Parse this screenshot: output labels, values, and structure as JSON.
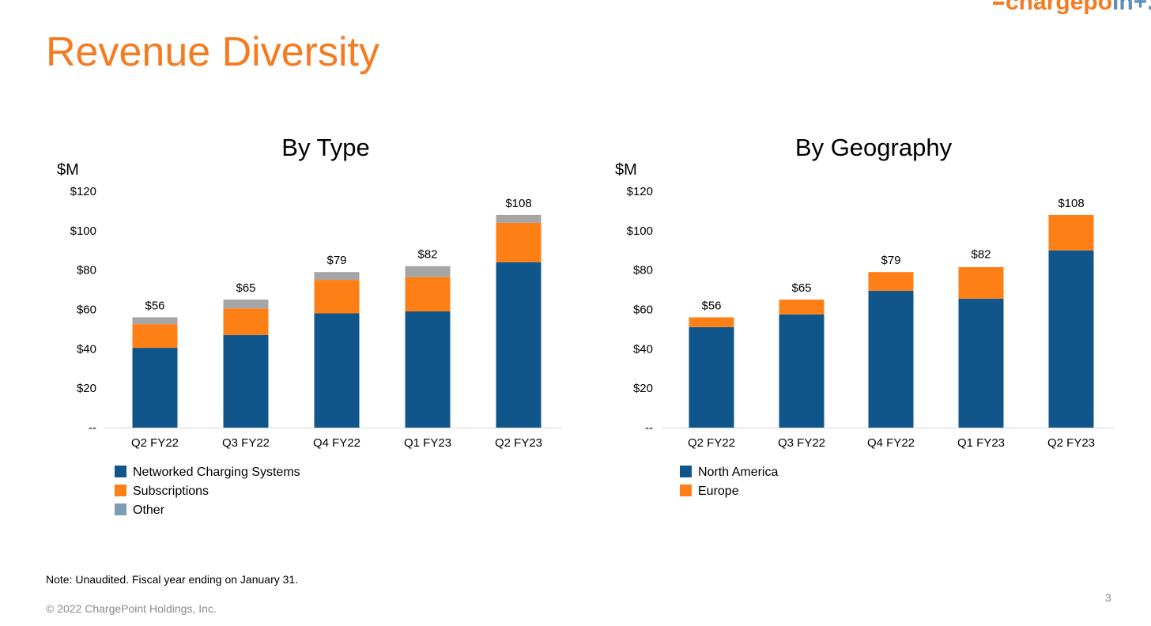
{
  "page": {
    "title": "Revenue Diversity",
    "logo_text_a": "chargepo",
    "logo_text_b": "in+.",
    "note": "Note: Unaudited. Fiscal year ending on January 31.",
    "footer": "© 2022 ChargePoint Holdings, Inc.",
    "page_number": "3"
  },
  "colors": {
    "navy": "#10568a",
    "orange": "#ff7f17",
    "gray": "#a5a5a5",
    "legend_gray": "#7f9db2",
    "brand_orange": "#f47b20"
  },
  "chart_data": [
    {
      "type": "bar",
      "stacked": true,
      "title": "By Type",
      "ylabel": "$M",
      "ylim": [
        0,
        120
      ],
      "yticks": [
        0,
        20,
        40,
        60,
        80,
        100,
        120
      ],
      "ytick_labels": [
        "--",
        "$20",
        "$40",
        "$60",
        "$80",
        "$100",
        "$120"
      ],
      "categories": [
        "Q2 FY22",
        "Q3 FY22",
        "Q4 FY22",
        "Q1 FY23",
        "Q2 FY23"
      ],
      "series": [
        {
          "name": "Networked Charging Systems",
          "color": "#10568a",
          "legend_color": "#10568a",
          "values": [
            40.5,
            47,
            58,
            59,
            84
          ]
        },
        {
          "name": "Subscriptions",
          "color": "#ff7f17",
          "legend_color": "#ff7f17",
          "values": [
            12,
            13.5,
            17,
            17.5,
            20
          ]
        },
        {
          "name": "Other",
          "color": "#a5a5a5",
          "legend_color": "#7f9db2",
          "values": [
            3.5,
            4.5,
            4,
            5.5,
            4
          ]
        }
      ],
      "totals": [
        56,
        65,
        79,
        82,
        108
      ],
      "total_labels": [
        "$56",
        "$65",
        "$79",
        "$82",
        "$108"
      ],
      "legend": "bottom-left"
    },
    {
      "type": "bar",
      "stacked": true,
      "title": "By Geography",
      "ylabel": "$M",
      "ylim": [
        0,
        120
      ],
      "yticks": [
        0,
        20,
        40,
        60,
        80,
        100,
        120
      ],
      "ytick_labels": [
        "--",
        "$20",
        "$40",
        "$60",
        "$80",
        "$100",
        "$120"
      ],
      "categories": [
        "Q2 FY22",
        "Q3 FY22",
        "Q4 FY22",
        "Q1 FY23",
        "Q2 FY23"
      ],
      "series": [
        {
          "name": "North America",
          "color": "#10568a",
          "legend_color": "#10568a",
          "values": [
            51,
            57.5,
            69.5,
            65.5,
            90
          ]
        },
        {
          "name": "Europe",
          "color": "#ff7f17",
          "legend_color": "#ff7f17",
          "values": [
            5,
            7.5,
            9.5,
            16,
            18
          ]
        }
      ],
      "totals": [
        56,
        65,
        79,
        82,
        108
      ],
      "total_labels": [
        "$56",
        "$65",
        "$79",
        "$82",
        "$108"
      ],
      "legend": "bottom-left"
    }
  ]
}
